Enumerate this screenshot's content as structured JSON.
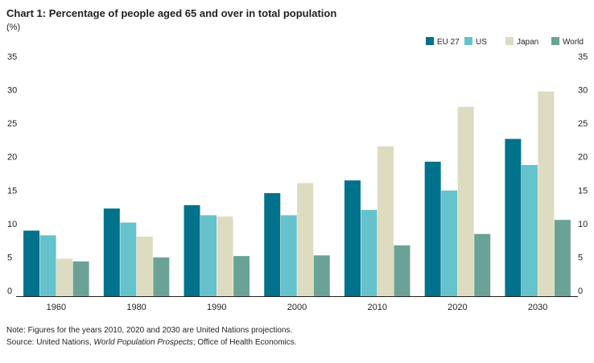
{
  "chart_data": {
    "type": "bar",
    "title": "Chart 1: Percentage of people aged 65 and over in total population",
    "unit": "(%)",
    "categories": [
      "1960",
      "1980",
      "1990",
      "2000",
      "2010",
      "2020",
      "2030"
    ],
    "series": [
      {
        "name": "EU 27",
        "color": "#00728c",
        "values": [
          9.8,
          13.1,
          13.6,
          15.4,
          17.3,
          20.1,
          23.5
        ]
      },
      {
        "name": "US",
        "color": "#66c2cc",
        "values": [
          9.1,
          11.0,
          12.1,
          12.1,
          12.9,
          15.8,
          19.6
        ]
      },
      {
        "name": "Japan",
        "color": "#dddcc0",
        "values": [
          5.6,
          8.9,
          11.9,
          16.9,
          22.4,
          28.3,
          30.6
        ]
      },
      {
        "name": "World",
        "color": "#6aa396",
        "values": [
          5.2,
          5.8,
          6.0,
          6.1,
          7.6,
          9.3,
          11.4
        ]
      }
    ],
    "ylim": [
      0,
      35
    ],
    "yticks": [
      "0",
      "5",
      "10",
      "15",
      "20",
      "25",
      "30",
      "35"
    ],
    "grid": false,
    "legend": "top-right"
  },
  "note": {
    "line1": "Note: Figures for the years 2010, 2020 and 2030 are United Nations projections.",
    "source_prefix": "Source: United Nations, ",
    "source_title": "World Population Prospects",
    "source_suffix": "; Office of Health Economics."
  }
}
